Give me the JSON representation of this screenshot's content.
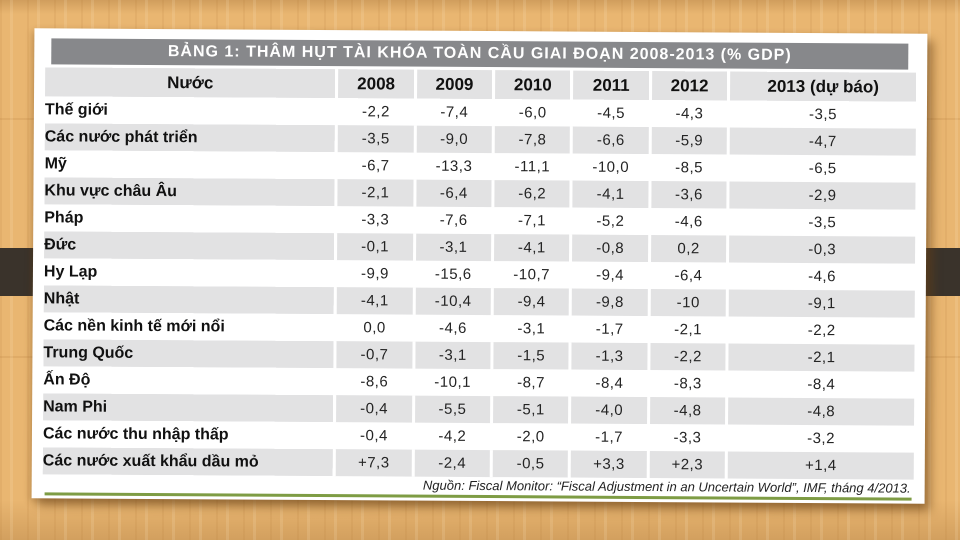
{
  "colors": {
    "wood_background": "#e9b671",
    "accent_band": "#3a332b",
    "title_bar_gray": "#87888b",
    "row_stripe_gray": "#e2e2e3",
    "green_rule": "#7e9c44",
    "card_background": "#ffffff"
  },
  "chart_data": {
    "type": "table",
    "title": "BẢNG 1: THÂM HỤT TÀI KHÓA TOÀN CẦU GIAI ĐOẠN 2008-2013 (% GDP)",
    "columns": [
      "Nước",
      "2008",
      "2009",
      "2010",
      "2011",
      "2012",
      "2013 (dự báo)"
    ],
    "rows": [
      {
        "label": "Thế giới",
        "values": [
          "-2,2",
          "-7,4",
          "-6,0",
          "-4,5",
          "-4,3",
          "-3,5"
        ]
      },
      {
        "label": "Các nước phát triển",
        "values": [
          "-3,5",
          "-9,0",
          "-7,8",
          "-6,6",
          "-5,9",
          "-4,7"
        ]
      },
      {
        "label": "Mỹ",
        "values": [
          "-6,7",
          "-13,3",
          "-11,1",
          "-10,0",
          "-8,5",
          "-6,5"
        ]
      },
      {
        "label": "Khu vực châu Âu",
        "values": [
          "-2,1",
          "-6,4",
          "-6,2",
          "-4,1",
          "-3,6",
          "-2,9"
        ]
      },
      {
        "label": "Pháp",
        "values": [
          "-3,3",
          "-7,6",
          "-7,1",
          "-5,2",
          "-4,6",
          "-3,5"
        ]
      },
      {
        "label": "Đức",
        "values": [
          "-0,1",
          "-3,1",
          "-4,1",
          "-0,8",
          "0,2",
          "-0,3"
        ]
      },
      {
        "label": "Hy Lạp",
        "values": [
          "-9,9",
          "-15,6",
          "-10,7",
          "-9,4",
          "-6,4",
          "-4,6"
        ]
      },
      {
        "label": "Nhật",
        "values": [
          "-4,1",
          "-10,4",
          "-9,4",
          "-9,8",
          "-10",
          "-9,1"
        ]
      },
      {
        "label": "Các nền kinh tế mới nổi",
        "values": [
          "0,0",
          "-4,6",
          "-3,1",
          "-1,7",
          "-2,1",
          "-2,2"
        ]
      },
      {
        "label": "Trung Quốc",
        "values": [
          "-0,7",
          "-3,1",
          "-1,5",
          "-1,3",
          "-2,2",
          "-2,1"
        ]
      },
      {
        "label": "Ấn Độ",
        "values": [
          "-8,6",
          "-10,1",
          "-8,7",
          "-8,4",
          "-8,3",
          "-8,4"
        ]
      },
      {
        "label": "Nam Phi",
        "values": [
          "-0,4",
          "-5,5",
          "-5,1",
          "-4,0",
          "-4,8",
          "-4,8"
        ]
      },
      {
        "label": "Các nước thu nhập thấp",
        "values": [
          "-0,4",
          "-4,2",
          "-2,0",
          "-1,7",
          "-3,3",
          "-3,2"
        ]
      },
      {
        "label": "Các nước xuất khẩu dầu mỏ",
        "values": [
          "+7,3",
          "-2,4",
          "-0,5",
          "+3,3",
          "+2,3",
          "+1,4"
        ]
      }
    ],
    "source": "Nguồn: Fiscal Monitor: “Fiscal Adjustment in an Uncertain World”, IMF, tháng 4/2013."
  }
}
